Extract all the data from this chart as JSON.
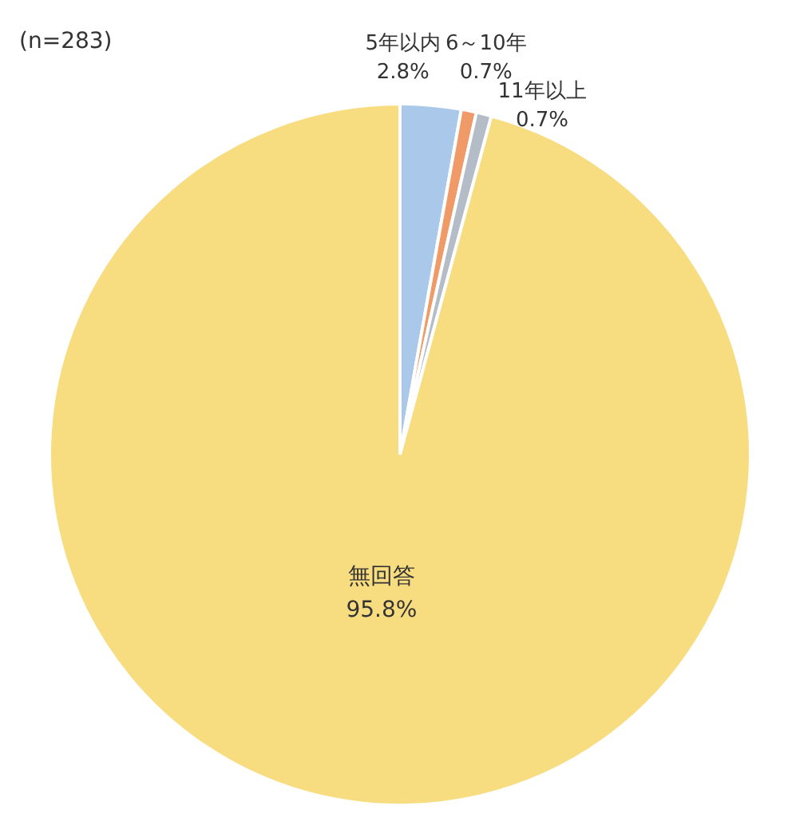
{
  "chart_data": {
    "type": "pie",
    "annotations": [
      "(n=283)"
    ],
    "categories": [
      "5年以内",
      "6～10年",
      "11年以上",
      "無回答"
    ],
    "values": [
      2.8,
      0.7,
      0.7,
      95.8
    ],
    "value_labels": [
      "2.8%",
      "0.7%",
      "0.7%",
      "95.8%"
    ],
    "colors": [
      "#a9c8ea",
      "#f09a68",
      "#b4bcc8",
      "#f8dc80"
    ],
    "legend": false
  }
}
